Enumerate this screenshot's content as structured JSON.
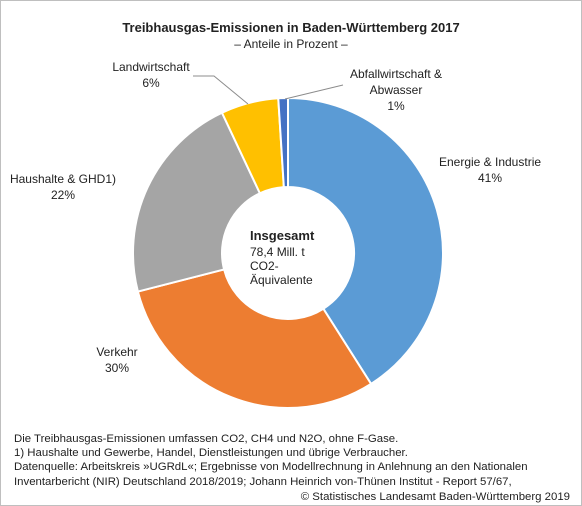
{
  "title": "Treibhausgas-Emissionen in Baden-Württemberg 2017",
  "subtitle": "– Anteile in Prozent –",
  "chart_data": {
    "type": "pie",
    "donut": true,
    "unit": "%",
    "categories": [
      "Energie & Industrie",
      "Verkehr",
      "Haushalte & GHD1)",
      "Landwirtschaft",
      "Abfallwirtschaft & Abwasser"
    ],
    "values": [
      41,
      30,
      22,
      6,
      1
    ],
    "slice_labels": [
      {
        "name_lines": [
          "Energie & Industrie"
        ],
        "value": "41%"
      },
      {
        "name_lines": [
          "Verkehr"
        ],
        "value": "30%"
      },
      {
        "name_lines": [
          "Haushalte & GHD1)"
        ],
        "value": "22%"
      },
      {
        "name_lines": [
          "Landwirtschaft"
        ],
        "value": "6%"
      },
      {
        "name_lines": [
          "Abfallwirtschaft &",
          "Abwasser"
        ],
        "value": "1%"
      }
    ],
    "colors": [
      "#5b9bd5",
      "#ed7d31",
      "#a5a5a5",
      "#ffc000",
      "#4472c4"
    ],
    "center_label": {
      "heading": "Insgesamt",
      "lines": [
        "78,4 Mill. t",
        "CO2-",
        "Äquivalente"
      ]
    }
  },
  "footnotes": [
    "Die Treibhausgas-Emissionen umfassen CO2, CH4 und N2O, ohne F-Gase.",
    "1) Haushalte und Gewerbe, Handel, Dienstleistungen und übrige Verbraucher.",
    "Datenquelle: Arbeitskreis »UGRdL«; Ergebnisse von Modellrechnung in Anlehnung an den Nationalen",
    "Inventarbericht (NIR) Deutschland 2018/2019; Johann Heinrich von-Thünen Institut - Report 57/67,"
  ],
  "copyright": "© Statistisches Landesamt Baden-Württemberg 2019"
}
